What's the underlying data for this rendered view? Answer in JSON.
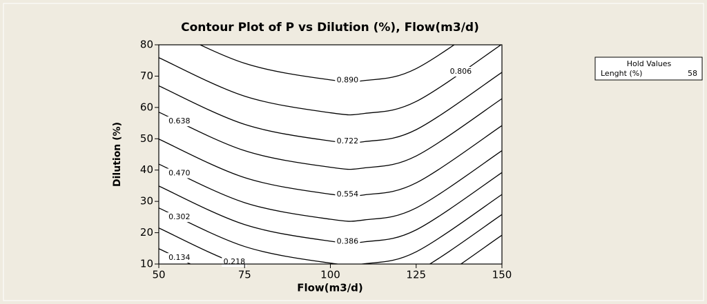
{
  "chart_data": {
    "type": "contour",
    "title": "Contour Plot of P vs Dilution (%), Flow(m3/d)",
    "xlabel": "Flow(m3/d)",
    "ylabel": "Dilution (%)",
    "xlim": [
      50,
      150
    ],
    "ylim": [
      10,
      80
    ],
    "xticks": [
      50,
      75,
      100,
      125,
      150
    ],
    "yticks": [
      10,
      20,
      30,
      40,
      50,
      60,
      70,
      80
    ],
    "x": [
      50,
      75,
      100,
      110,
      125,
      150
    ],
    "contours": [
      {
        "level": 0.89,
        "level_label": "0.890",
        "values": [
          86.4,
          74.1,
          68.8,
          68.6,
          72.4,
          90.7
        ]
      },
      {
        "level": 0.806,
        "level_label": "0.806",
        "values": [
          75.9,
          63.6,
          58.3,
          58.1,
          61.9,
          80.2
        ]
      },
      {
        "level": 0.722,
        "level_label": "0.722",
        "values": [
          66.9,
          54.6,
          49.3,
          49.1,
          52.9,
          71.2
        ]
      },
      {
        "level": 0.638,
        "level_label": "0.638",
        "values": [
          58.5,
          46.2,
          40.9,
          40.7,
          44.5,
          62.8
        ]
      },
      {
        "level": 0.554,
        "level_label": "0.554",
        "values": [
          49.9,
          37.6,
          32.3,
          32.1,
          35.9,
          54.2
        ]
      },
      {
        "level": 0.47,
        "level_label": "0.470",
        "values": [
          41.9,
          29.6,
          24.3,
          24.1,
          27.9,
          46.2
        ]
      },
      {
        "level": 0.386,
        "level_label": "0.386",
        "values": [
          34.9,
          22.6,
          17.3,
          17.1,
          20.9,
          39.2
        ]
      },
      {
        "level": 0.302,
        "level_label": "0.302",
        "values": [
          27.9,
          15.6,
          10.3,
          10.1,
          13.9,
          32.2
        ]
      },
      {
        "level": 0.218,
        "level_label": "0.218",
        "values": [
          21.5,
          9.2,
          3.9,
          3.7,
          7.5,
          25.8
        ]
      },
      {
        "level": 0.134,
        "level_label": "0.134",
        "values": [
          14.9,
          2.6,
          -2.7,
          -2.9,
          0.9,
          19.2
        ]
      }
    ],
    "hold_values": {
      "title": "Hold Values",
      "name": "Lenght (%)",
      "value": 58
    }
  }
}
